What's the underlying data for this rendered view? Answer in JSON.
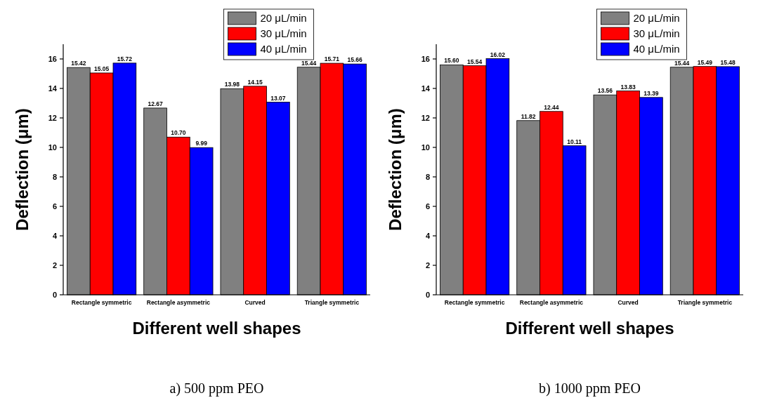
{
  "chart_data": [
    {
      "type": "bar",
      "xlabel": "Different well shapes",
      "ylabel": "Deflection (μm)",
      "categories": [
        "Rectangle symmetric",
        "Rectangle asymmetric",
        "Curved",
        "Triangle symmetric"
      ],
      "series": [
        {
          "name": "20 μL/min",
          "color": "#808080",
          "values": [
            15.42,
            12.67,
            13.98,
            15.44
          ]
        },
        {
          "name": "30 μL/min",
          "color": "#ff0000",
          "values": [
            15.05,
            10.7,
            14.15,
            15.71
          ]
        },
        {
          "name": "40 μL/min",
          "color": "#0000ff",
          "values": [
            15.72,
            9.99,
            13.07,
            15.66
          ]
        }
      ],
      "value_labels": [
        [
          "15.42",
          "12.67",
          "13.98",
          "15.44"
        ],
        [
          "15.05",
          "10.70",
          "14.15",
          "15.71"
        ],
        [
          "15.72",
          "9.99",
          "13.07",
          "15.66"
        ]
      ],
      "ylim": [
        0,
        17
      ],
      "yticks": [
        0,
        2,
        4,
        6,
        8,
        10,
        12,
        14,
        16
      ],
      "legend": "top",
      "annotations": [
        "a) 500 ppm PEO"
      ]
    },
    {
      "type": "bar",
      "xlabel": "Different well shapes",
      "ylabel": "Deflection (μm)",
      "categories": [
        "Rectangle symmetric",
        "Rectangle asymmetric",
        "Curved",
        "Triangle symmetric"
      ],
      "series": [
        {
          "name": "20 μL/min",
          "color": "#808080",
          "values": [
            15.6,
            11.82,
            13.56,
            15.44
          ]
        },
        {
          "name": "30 μL/min",
          "color": "#ff0000",
          "values": [
            15.54,
            12.44,
            13.83,
            15.49
          ]
        },
        {
          "name": "40 μL/min",
          "color": "#0000ff",
          "values": [
            16.02,
            10.11,
            13.39,
            15.48
          ]
        }
      ],
      "value_labels": [
        [
          "15.60",
          "11.82",
          "13.56",
          "15.44"
        ],
        [
          "15.54",
          "12.44",
          "13.83",
          "15.49"
        ],
        [
          "16.02",
          "10.11",
          "13.39",
          "15.48"
        ]
      ],
      "ylim": [
        0,
        17
      ],
      "yticks": [
        0,
        2,
        4,
        6,
        8,
        10,
        12,
        14,
        16
      ],
      "legend": "top",
      "annotations": [
        "b) 1000 ppm PEO"
      ]
    }
  ]
}
